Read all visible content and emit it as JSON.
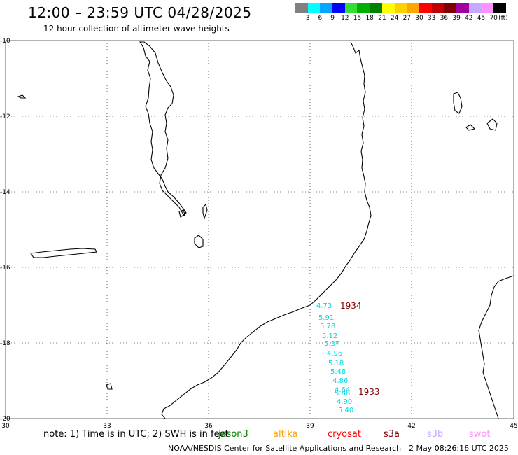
{
  "title": "12:00 – 23:59 UTC 04/28/2025",
  "subtitle": "12 hour collection of altimeter wave heights",
  "legend": {
    "colors": [
      "#808080",
      "#00ffff",
      "#00a8ff",
      "#0000ff",
      "#33dd33",
      "#00b000",
      "#008000",
      "#ffff00",
      "#ffd000",
      "#ffa500",
      "#ff0000",
      "#c00000",
      "#800000",
      "#a000a0",
      "#c8a8ff",
      "#ff90ff",
      "#000000"
    ],
    "labels": [
      "3",
      "6",
      "9",
      "12",
      "15",
      "18",
      "21",
      "24",
      "27",
      "30",
      "33",
      "36",
      "39",
      "42",
      "45",
      "70",
      "(ft)"
    ]
  },
  "map": {
    "lon_ticks": [
      "30",
      "33",
      "36",
      "39",
      "42",
      "45"
    ],
    "lat_ticks": [
      "-10",
      "-12",
      "-14",
      "-16",
      "-18",
      "-20"
    ],
    "wave_color": "#00d8e0",
    "pass_color": "#800000",
    "wave_heights": [
      "4.73",
      "5.91",
      "5.78",
      "5.12",
      "5.37",
      "4.96",
      "5.18",
      "5.48",
      "4.86",
      "4.64",
      "5.88",
      "4.90",
      "5.40"
    ],
    "pass_labels": [
      "1934",
      "1933"
    ]
  },
  "note": "note: 1) Time is in UTC; 2) SWH is in feet",
  "satellites": [
    {
      "name": "jason3",
      "color": "#008000"
    },
    {
      "name": "altika",
      "color": "#ffa500"
    },
    {
      "name": "cryosat",
      "color": "#ff0000"
    },
    {
      "name": "s3a",
      "color": "#800000"
    },
    {
      "name": "s3b",
      "color": "#c8a8ff"
    },
    {
      "name": "swot",
      "color": "#ff90ff"
    }
  ],
  "footer": "NOAA/NESDIS Center for Satellite Applications and Research",
  "footer_timestamp": "2 May 08:26:16 UTC 2025"
}
